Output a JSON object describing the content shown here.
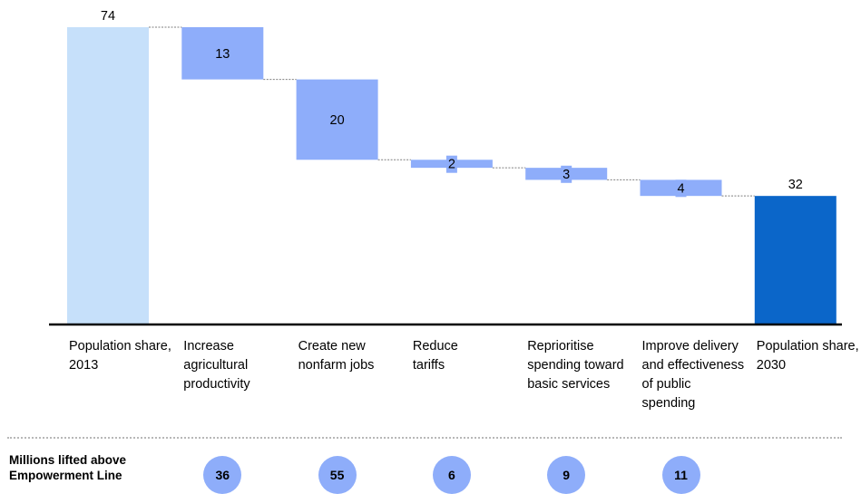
{
  "chart_data": {
    "type": "bar",
    "subtype": "waterfall",
    "categories": [
      "Population share, 2013",
      "Increase agricultural productivity",
      "Create new nonfarm jobs",
      "Reduce tariffs",
      "Reprioritise spending toward basic services",
      "Improve delivery and effectiveness of public spending",
      "Population share, 2030"
    ],
    "bars": [
      {
        "kind": "total",
        "value": 74,
        "label": "74"
      },
      {
        "kind": "decrease",
        "value": 13,
        "label": "13"
      },
      {
        "kind": "decrease",
        "value": 20,
        "label": "20"
      },
      {
        "kind": "decrease",
        "value": 2,
        "label": "2"
      },
      {
        "kind": "decrease",
        "value": 3,
        "label": "3"
      },
      {
        "kind": "decrease",
        "value": 4,
        "label": "4"
      },
      {
        "kind": "total",
        "value": 32,
        "label": "32"
      }
    ],
    "ylim": [
      0,
      74
    ],
    "colors": {
      "start_total": "#c6e0fa",
      "change": "#8eadfa",
      "end_total": "#0b66c9",
      "axis": "#000000",
      "connector": "#7f7f7f"
    },
    "footer": {
      "title": "Millions lifted above Empowerment Line",
      "values": [
        "36",
        "55",
        "6",
        "9",
        "11"
      ]
    }
  }
}
